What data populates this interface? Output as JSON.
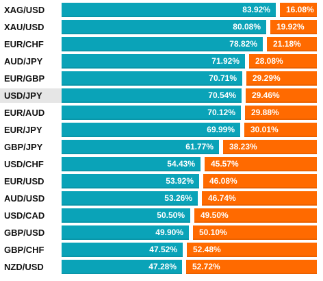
{
  "chart_data": {
    "type": "bar",
    "orientation": "horizontal",
    "stacked": true,
    "categories": [
      "XAG/USD",
      "XAU/USD",
      "EUR/CHF",
      "AUD/JPY",
      "EUR/GBP",
      "USD/JPY",
      "EUR/AUD",
      "EUR/JPY",
      "GBP/JPY",
      "USD/CHF",
      "EUR/USD",
      "AUD/USD",
      "USD/CAD",
      "GBP/USD",
      "GBP/CHF",
      "NZD/USD"
    ],
    "series": [
      {
        "values": [
          83.92,
          80.08,
          78.82,
          71.92,
          70.71,
          70.54,
          70.12,
          69.99,
          61.77,
          54.43,
          53.92,
          53.26,
          50.5,
          49.9,
          47.52,
          47.28
        ],
        "labels": [
          "83.92%",
          "80.08%",
          "78.82%",
          "71.92%",
          "70.71%",
          "70.54%",
          "70.12%",
          "69.99%",
          "61.77%",
          "54.43%",
          "53.92%",
          "53.26%",
          "50.50%",
          "49.90%",
          "47.52%",
          "47.28%"
        ]
      },
      {
        "values": [
          16.08,
          19.92,
          21.18,
          28.08,
          29.29,
          29.46,
          29.88,
          30.01,
          38.23,
          45.57,
          46.08,
          46.74,
          49.5,
          50.1,
          52.48,
          52.72
        ],
        "labels": [
          "16.08%",
          "19.92%",
          "21.18%",
          "28.08%",
          "29.29%",
          "29.46%",
          "29.88%",
          "30.01%",
          "38.23%",
          "45.57%",
          "46.08%",
          "46.74%",
          "49.50%",
          "50.10%",
          "52.48%",
          "52.72%"
        ]
      }
    ],
    "xlim": [
      0,
      100
    ],
    "highlighted_category": "USD/JPY",
    "colors": {
      "series_1": "#0aa3b8",
      "series_2": "#ff6a00",
      "track": "#e6e6e6",
      "highlight": "#e6e6e6"
    },
    "grid": false,
    "legend": "none"
  }
}
